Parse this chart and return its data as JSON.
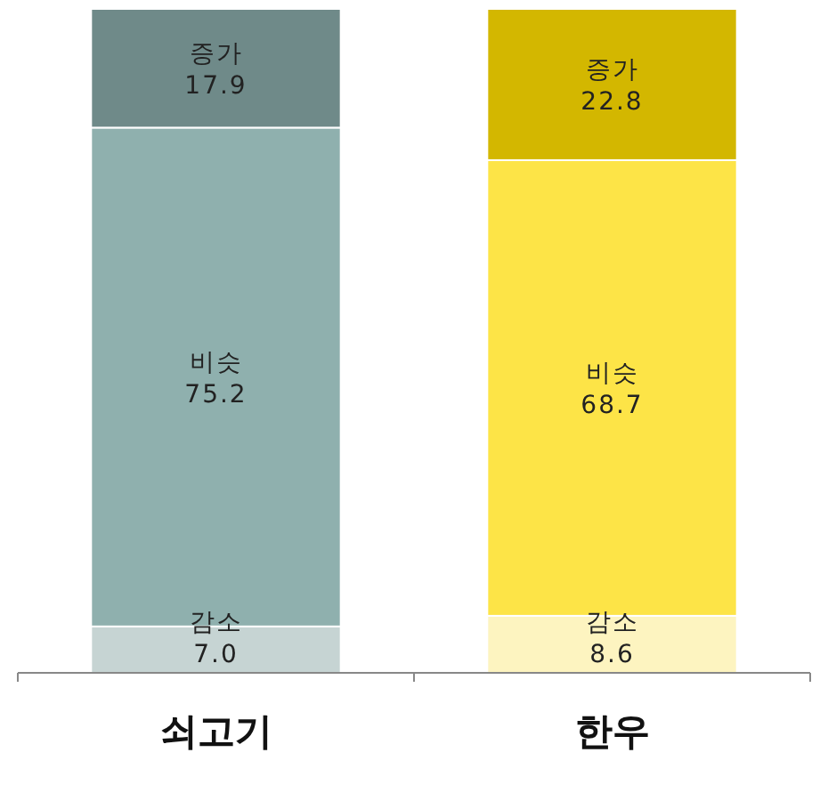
{
  "chart_data": {
    "type": "bar",
    "stacked": true,
    "categories": [
      "쇠고기",
      "한우"
    ],
    "series": [
      {
        "name": "감소",
        "colors": [
          "#c6d4d3",
          "#fdf4c0"
        ],
        "values": [
          7.0,
          8.6
        ],
        "value_labels": [
          "7.0",
          "8.6"
        ]
      },
      {
        "name": "비슷",
        "colors": [
          "#8fb0ae",
          "#fde447"
        ],
        "values": [
          75.2,
          68.7
        ],
        "value_labels": [
          "75.2",
          "68.7"
        ]
      },
      {
        "name": "증가",
        "colors": [
          "#6f8a89",
          "#d3b700"
        ],
        "values": [
          17.9,
          22.8
        ],
        "value_labels": [
          "17.9",
          "22.8"
        ]
      }
    ]
  }
}
